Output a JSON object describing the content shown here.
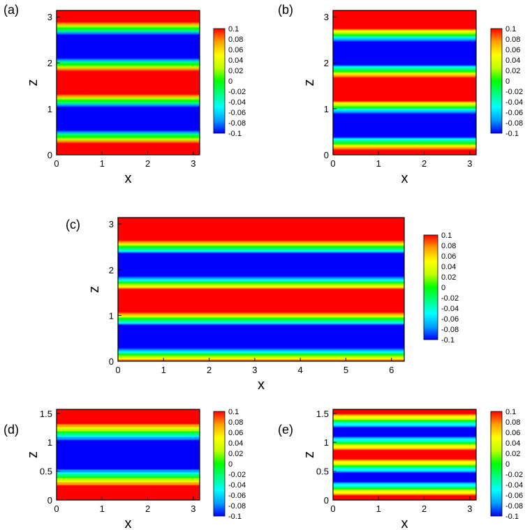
{
  "figure": {
    "colorbar": {
      "min": -0.1,
      "max": 0.1,
      "tick_labels": [
        "0.1",
        "0.08",
        "0.06",
        "0.04",
        "0.02",
        "0",
        "-0.02",
        "-0.04",
        "-0.06",
        "-0.08",
        "-0.1"
      ],
      "colormap": [
        "#0000ff",
        "#00a0ff",
        "#00ffff",
        "#00ff80",
        "#00ff00",
        "#c0ff00",
        "#ffff00",
        "#ffa000",
        "#ff0000"
      ]
    }
  },
  "chart_data": [
    {
      "id": "a",
      "panel_label": "(a)",
      "type": "heatmap",
      "xlabel": "x",
      "ylabel": "z",
      "xlim": [
        0,
        3.14
      ],
      "ylim": [
        0,
        3.14
      ],
      "xticks": [
        "0",
        "1",
        "2",
        "3"
      ],
      "yticks": [
        "0",
        "1",
        "2",
        "3"
      ],
      "pattern": "cosine",
      "z_period": 1.57,
      "phase": 0,
      "amplitude_scale": 1.0,
      "waviness": 0.06,
      "description": "Alternating horizontal bands of red (+0.1) and blue (-0.1) with slight waviness"
    },
    {
      "id": "b",
      "panel_label": "(b)",
      "type": "heatmap",
      "xlabel": "x",
      "ylabel": "z",
      "xlim": [
        0,
        3.14
      ],
      "ylim": [
        0,
        3.14
      ],
      "xticks": [
        "0",
        "1",
        "2",
        "3"
      ],
      "yticks": [
        "0",
        "1",
        "2",
        "3"
      ],
      "pattern": "cosine",
      "z_period": 1.57,
      "phase": 0.55,
      "amplitude_scale": 1.0,
      "waviness": 0.08
    },
    {
      "id": "c",
      "panel_label": "(c)",
      "type": "heatmap",
      "xlabel": "x",
      "ylabel": "z",
      "xlim": [
        0,
        6.28
      ],
      "ylim": [
        0,
        3.14
      ],
      "xticks": [
        "0",
        "1",
        "2",
        "3",
        "4",
        "5",
        "6"
      ],
      "yticks": [
        "0",
        "1",
        "2",
        "3"
      ],
      "pattern": "cosine",
      "z_period": 1.57,
      "phase": 1.05,
      "amplitude_scale": 1.0,
      "waviness": 0.07
    },
    {
      "id": "d",
      "panel_label": "(d)",
      "type": "heatmap",
      "xlabel": "x",
      "ylabel": "z",
      "xlim": [
        0,
        3.14
      ],
      "ylim": [
        0,
        1.57
      ],
      "xticks": [
        "0",
        "1",
        "2",
        "3"
      ],
      "yticks": [
        "0",
        "0.5",
        "1",
        "1.5"
      ],
      "pattern": "cosine",
      "z_period": 1.57,
      "phase": 0.0,
      "amplitude_scale": 1.0,
      "waviness": 0.06
    },
    {
      "id": "e",
      "panel_label": "(e)",
      "type": "heatmap",
      "xlabel": "x",
      "ylabel": "z",
      "xlim": [
        0,
        3.14
      ],
      "ylim": [
        0,
        1.57
      ],
      "xticks": [
        "0",
        "1",
        "2",
        "3"
      ],
      "yticks": [
        "0",
        "0.5",
        "1",
        "1.5"
      ],
      "pattern": "cosine",
      "z_period": 0.785,
      "phase": 0.0,
      "amplitude_scale": 0.6,
      "waviness": 0.05
    }
  ]
}
